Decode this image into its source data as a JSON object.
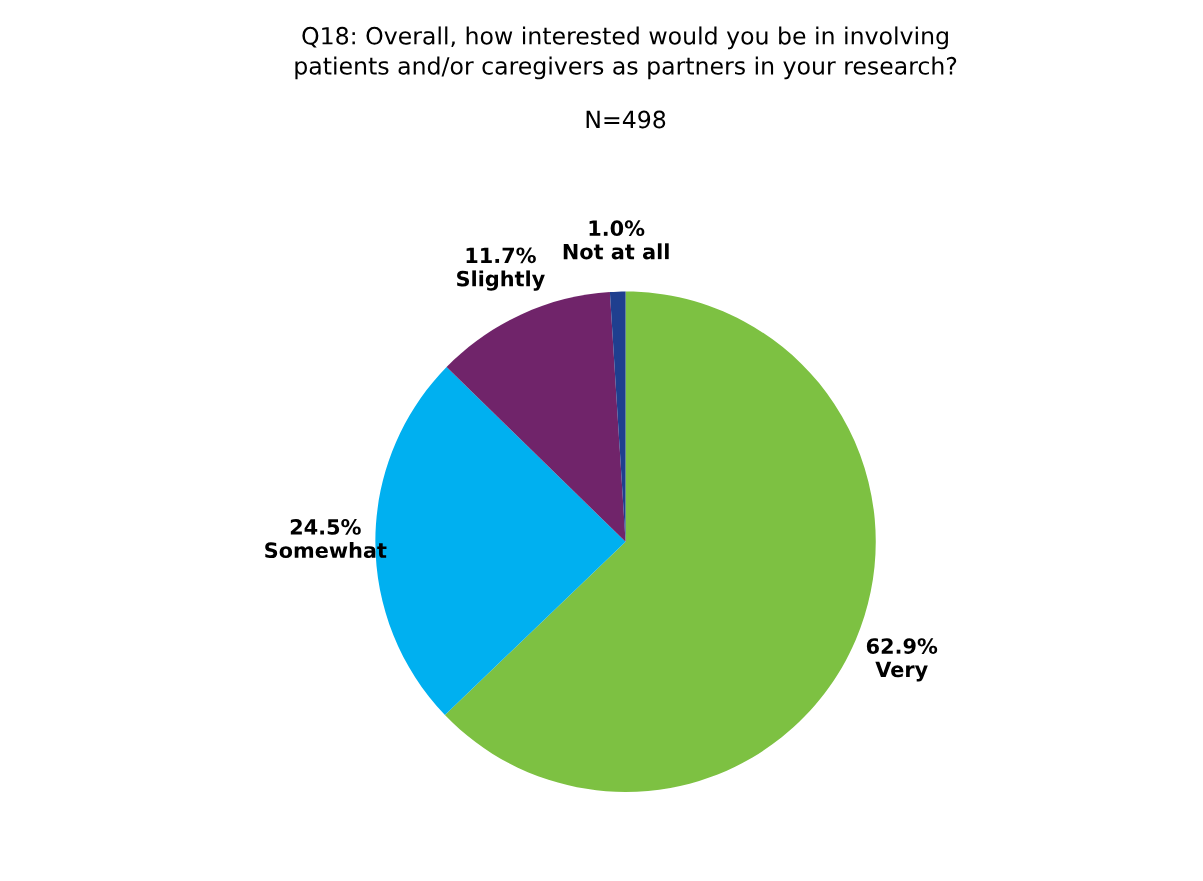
{
  "chart_data": {
    "type": "pie",
    "title": "Q18: Overall, how interested would you be in involving\npatients and/or caregivers as partners in your research?",
    "subtitle": "N=498",
    "categories": [
      "Very",
      "Somewhat",
      "Slightly",
      "Not at all"
    ],
    "values": [
      62.9,
      24.5,
      11.7,
      1.0
    ],
    "value_labels": [
      "62.9%",
      "24.5%",
      "11.7%",
      "1.0%"
    ],
    "colors": [
      "#7dc142",
      "#00b0f0",
      "#70246a",
      "#1f3f8f"
    ],
    "legend": false
  }
}
